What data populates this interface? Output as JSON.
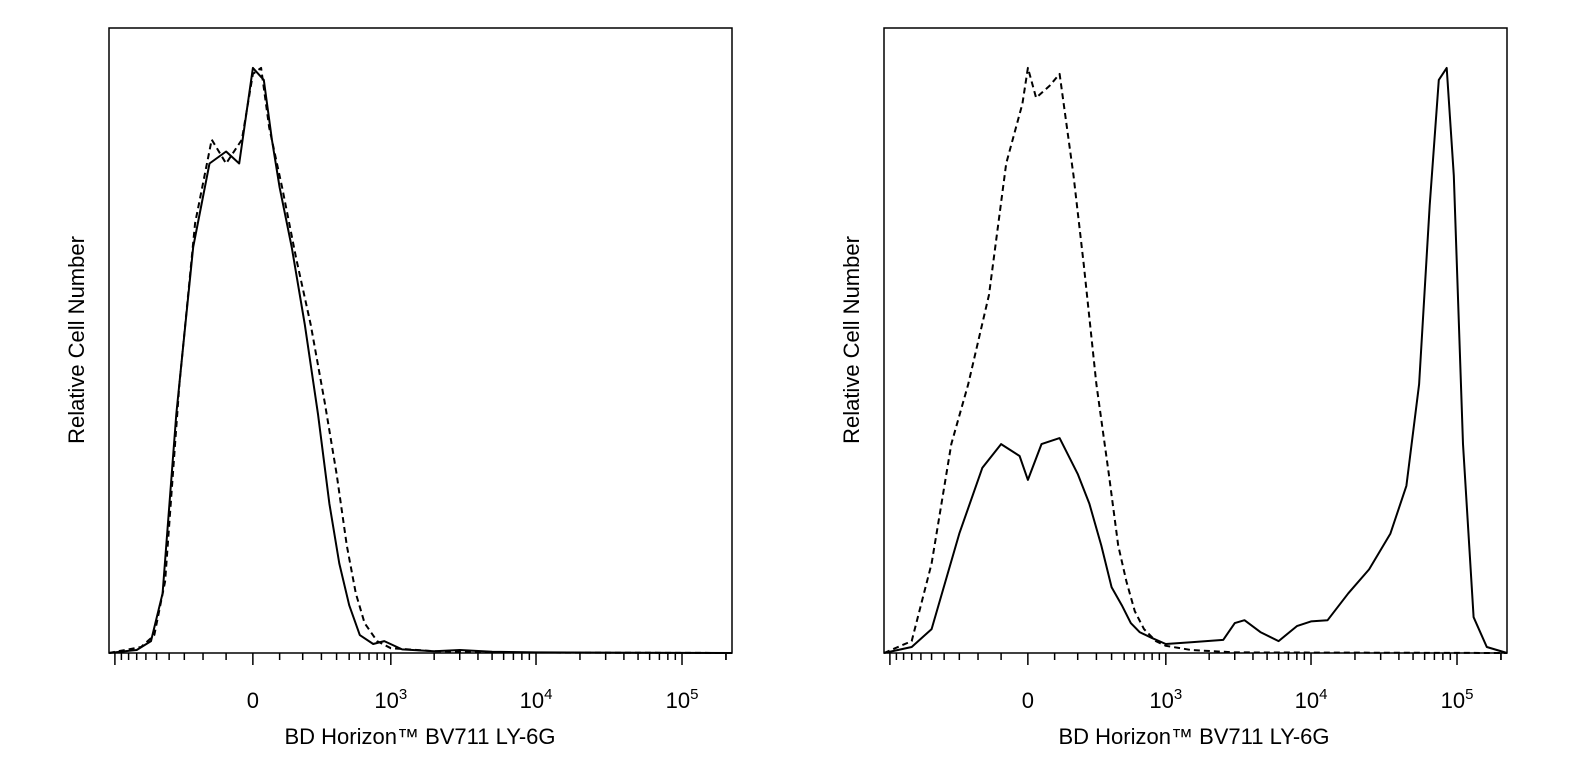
{
  "chart_data": [
    {
      "type": "line",
      "xlabel": "BD Horizon™ BV711 LY-6G",
      "ylabel": "Relative Cell Number",
      "x_scale": "biexponential",
      "xlim": [
        -1100,
        220000
      ],
      "ylim": [
        0,
        100
      ],
      "x_ticks": [
        {
          "value": 0,
          "base": "0",
          "exp": ""
        },
        {
          "value": 1000,
          "base": "10",
          "exp": "3"
        },
        {
          "value": 10000,
          "base": "10",
          "exp": "4"
        },
        {
          "value": 100000,
          "base": "10",
          "exp": "5"
        }
      ],
      "series": [
        {
          "style": "solid",
          "color": "#000000",
          "x": [
            -1100,
            -700,
            -550,
            -450,
            -350,
            -250,
            -170,
            -100,
            -50,
            0,
            40,
            70,
            100,
            150,
            210,
            280,
            350,
            420,
            500,
            600,
            750,
            900,
            1200,
            2000,
            3000,
            5000,
            10000,
            220000
          ],
          "y": [
            0,
            0.5,
            2,
            10,
            40,
            68,
            82,
            84,
            82,
            98,
            96,
            86,
            78,
            68,
            55,
            40,
            25,
            15,
            8,
            3,
            1.5,
            2,
            0.6,
            0.3,
            0.5,
            0.2,
            0.1,
            0
          ]
        },
        {
          "style": "dashed",
          "color": "#000000",
          "x": [
            -1100,
            -650,
            -520,
            -430,
            -330,
            -240,
            -160,
            -100,
            -40,
            0,
            30,
            60,
            110,
            170,
            240,
            320,
            400,
            480,
            560,
            650,
            800,
            1000,
            2000,
            5000,
            220000
          ],
          "y": [
            0,
            1,
            3,
            12,
            45,
            72,
            86,
            82,
            86,
            97,
            98,
            88,
            78,
            66,
            55,
            42,
            30,
            18,
            10,
            5,
            2,
            0.8,
            0.3,
            0.1,
            0
          ]
        }
      ]
    },
    {
      "type": "line",
      "xlabel": "BD Horizon™ BV711 LY-6G",
      "ylabel": "Relative Cell Number",
      "x_scale": "biexponential",
      "xlim": [
        -1100,
        220000
      ],
      "ylim": [
        0,
        100
      ],
      "x_ticks": [
        {
          "value": 0,
          "base": "0",
          "exp": ""
        },
        {
          "value": 1000,
          "base": "10",
          "exp": "3"
        },
        {
          "value": 10000,
          "base": "10",
          "exp": "4"
        },
        {
          "value": 100000,
          "base": "10",
          "exp": "5"
        }
      ],
      "series": [
        {
          "style": "solid",
          "color": "#000000",
          "x": [
            -1100,
            -700,
            -500,
            -300,
            -180,
            -100,
            -30,
            0,
            50,
            120,
            200,
            260,
            330,
            400,
            480,
            560,
            650,
            800,
            1000,
            1500,
            2500,
            3000,
            3500,
            4500,
            6000,
            8000,
            10000,
            13000,
            18000,
            25000,
            35000,
            45000,
            55000,
            65000,
            75000,
            85000,
            95000,
            110000,
            130000,
            160000,
            220000
          ],
          "y": [
            0,
            1,
            4,
            20,
            31,
            35,
            33,
            29,
            35,
            36,
            30,
            25,
            18,
            11,
            8,
            5,
            3.5,
            2.5,
            1.5,
            1.8,
            2.2,
            5,
            5.5,
            3.5,
            2,
            4.5,
            5.3,
            5.5,
            10,
            14,
            20,
            28,
            45,
            75,
            96,
            98,
            80,
            35,
            6,
            1,
            0
          ]
        },
        {
          "style": "dashed",
          "color": "#000000",
          "x": [
            -1100,
            -700,
            -500,
            -350,
            -250,
            -150,
            -80,
            -20,
            0,
            30,
            80,
            120,
            180,
            230,
            300,
            380,
            450,
            520,
            600,
            700,
            850,
            1000,
            1500,
            3000,
            220000
          ],
          "y": [
            0,
            2,
            15,
            35,
            45,
            60,
            82,
            92,
            98,
            93,
            95,
            97,
            80,
            65,
            45,
            30,
            18,
            12,
            7,
            4,
            2,
            1.2,
            0.5,
            0.1,
            0
          ]
        }
      ]
    }
  ]
}
